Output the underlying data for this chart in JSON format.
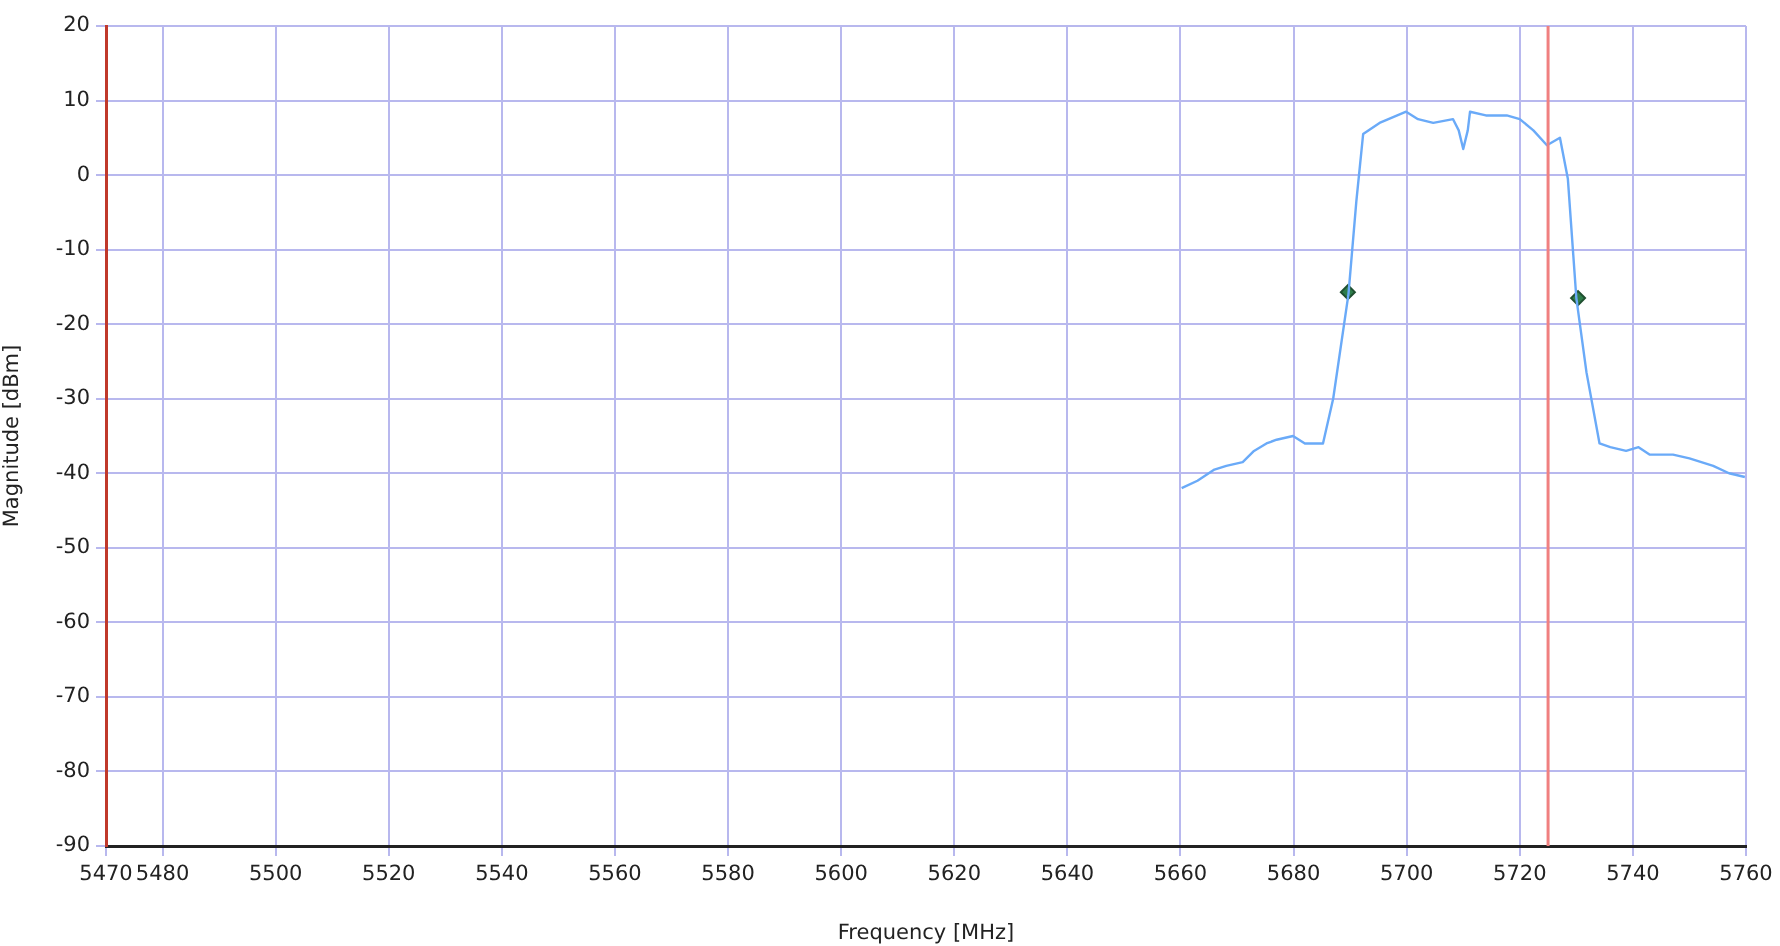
{
  "chart_data": {
    "type": "line",
    "xlabel": "Frequency [MHz]",
    "ylabel": "Magnitude [dBm]",
    "xlim": [
      5470,
      5760
    ],
    "xticks": [
      5470,
      5480,
      5500,
      5520,
      5540,
      5560,
      5580,
      5600,
      5620,
      5640,
      5660,
      5680,
      5700,
      5720,
      5740,
      5760
    ],
    "ylim": [
      -90,
      20
    ],
    "yticks": [
      -90,
      -80,
      -70,
      -60,
      -50,
      -40,
      -30,
      -20,
      -10,
      0,
      10,
      20
    ],
    "grid": true,
    "series": [
      {
        "type": "line",
        "color": "#6aaaf8",
        "marker": "none",
        "x": [
          5660.2,
          5663,
          5666,
          5668.1,
          5671,
          5673,
          5675.2,
          5677,
          5679.9,
          5682,
          5685.2,
          5687.0,
          5689.7,
          5691.1,
          5692.3,
          5695.2,
          5699.9,
          5702,
          5704.7,
          5708.2,
          5709.2,
          5710.0,
          5710.8,
          5711.2,
          5714,
          5717.7,
          5720,
          5722.4,
          5724.8,
          5727.1,
          5728.5,
          5730.0,
          5731.8,
          5734.1,
          5736,
          5738.8,
          5741,
          5743,
          5747.1,
          5750,
          5754.2,
          5757,
          5759.8
        ],
        "values": [
          -42,
          -41,
          -39.5,
          -39,
          -38.5,
          -37,
          -36,
          -35.5,
          -35,
          -36,
          -36,
          -30,
          -16,
          -3.5,
          5.5,
          7,
          8.5,
          7.5,
          7,
          7.5,
          6,
          3.5,
          6,
          8.5,
          8,
          8,
          7.5,
          6,
          4,
          5,
          -0.5,
          -16.5,
          -26.5,
          -36,
          -36.5,
          -37,
          -36.5,
          -37.5,
          -37.5,
          -38,
          -39,
          -40,
          -40.5
        ]
      },
      {
        "type": "scatter",
        "color": "#2e7d4a",
        "marker": "diamond",
        "x": [
          5689.6,
          5730.3
        ],
        "values": [
          -15.7,
          -16.5
        ]
      }
    ],
    "ref_lines": [
      {
        "axis": "x",
        "value": 5725,
        "color": "#f08080"
      }
    ]
  }
}
